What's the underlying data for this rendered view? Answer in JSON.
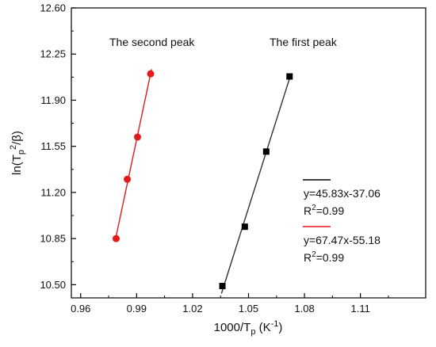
{
  "chart_data": {
    "type": "scatter",
    "xlabel": {
      "main": "1000/T",
      "sub": "p",
      "unit_open": " (K",
      "unit_sup": "-1",
      "unit_close": ")"
    },
    "ylabel": {
      "pre": "ln(T",
      "sub": "p",
      "sup": "2",
      "post": "/β)"
    },
    "xlim": [
      0.955,
      1.145
    ],
    "ylim": [
      10.4,
      12.6
    ],
    "xticks": [
      0.96,
      0.99,
      1.02,
      1.05,
      1.08,
      1.11
    ],
    "xtick_labels": [
      "0.96",
      "0.99",
      "1.02",
      "1.05",
      "1.08",
      "1.11"
    ],
    "yticks": [
      10.5,
      10.85,
      11.2,
      11.55,
      11.9,
      12.25,
      12.6
    ],
    "ytick_labels": [
      "10.50",
      "10.85",
      "11.20",
      "11.55",
      "11.90",
      "12.25",
      "12.60"
    ],
    "grid": false,
    "series": [
      {
        "color": "#000000",
        "marker": "square",
        "x": [
          1.036,
          1.048,
          1.0595,
          1.072
        ],
        "y": [
          10.49,
          10.94,
          11.51,
          12.08
        ],
        "fit_x": [
          1.0355,
          1.0725
        ]
      },
      {
        "color": "#e11b1b",
        "marker": "circle",
        "x": [
          0.979,
          0.985,
          0.9905,
          0.9975
        ],
        "y": [
          10.85,
          11.3,
          11.62,
          12.1
        ],
        "fit_x": [
          0.9785,
          0.998
        ]
      }
    ],
    "annotations": [
      {
        "id": "second",
        "text": "The second peak"
      },
      {
        "id": "first",
        "text": "The first peak"
      }
    ],
    "legend": {
      "position": "lower-right",
      "entries": [
        {
          "color": "#000000",
          "equation": "y=45.83x-37.06",
          "r2_pre": "R",
          "r2_sup": "2",
          "r2_post": "=0.99"
        },
        {
          "color": "#e11b1b",
          "equation": "y=67.47x-55.18",
          "r2_pre": "R",
          "r2_sup": "2",
          "r2_post": "=0.99"
        }
      ]
    }
  }
}
